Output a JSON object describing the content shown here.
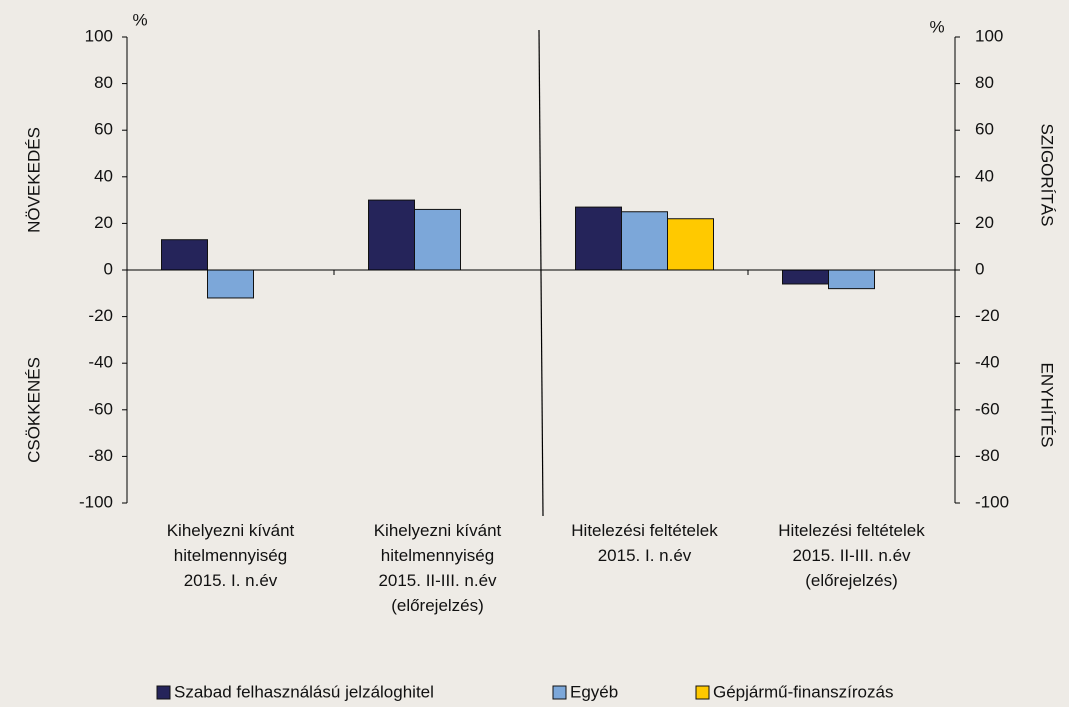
{
  "chart_data": {
    "type": "bar",
    "categories": [
      "Kihelyezni kívánt\nhitelmennyiség\n2015. I. n.év",
      "Kihelyezni kívánt\nhitelmennyiség\n2015. II-III. n.év\n(előrejelzés)",
      "Hitelezési feltételek\n2015. I. n.év",
      "Hitelezési feltételek\n2015. II-III. n.év\n(előrejelzés)"
    ],
    "series": [
      {
        "name": "Szabad felhasználású jelzáloghitel",
        "color": "#25245a",
        "values": [
          13,
          30,
          27,
          -6
        ]
      },
      {
        "name": "Egyéb",
        "color": "#7ca7d9",
        "values": [
          -12,
          26,
          25,
          -8
        ]
      },
      {
        "name": "Gépjármű-finanszírozás",
        "color": "#ffc900",
        "values": [
          null,
          null,
          22,
          null
        ]
      }
    ],
    "ylim": [
      -100,
      100
    ],
    "yticks": [
      -100,
      -80,
      -60,
      -40,
      -20,
      0,
      20,
      40,
      60,
      80,
      100
    ],
    "y2lim": [
      -100,
      100
    ],
    "y2ticks": [
      -100,
      -80,
      -60,
      -40,
      -20,
      0,
      20,
      40,
      60,
      80,
      100
    ],
    "y_unit": "%",
    "y2_unit": "%",
    "left_labels": [
      "NÖVEKEDÉS",
      "CSÖKKENÉS"
    ],
    "right_labels": [
      "SZIGORÍTÁS",
      "ENYHÍTÉS"
    ],
    "grid": false
  }
}
